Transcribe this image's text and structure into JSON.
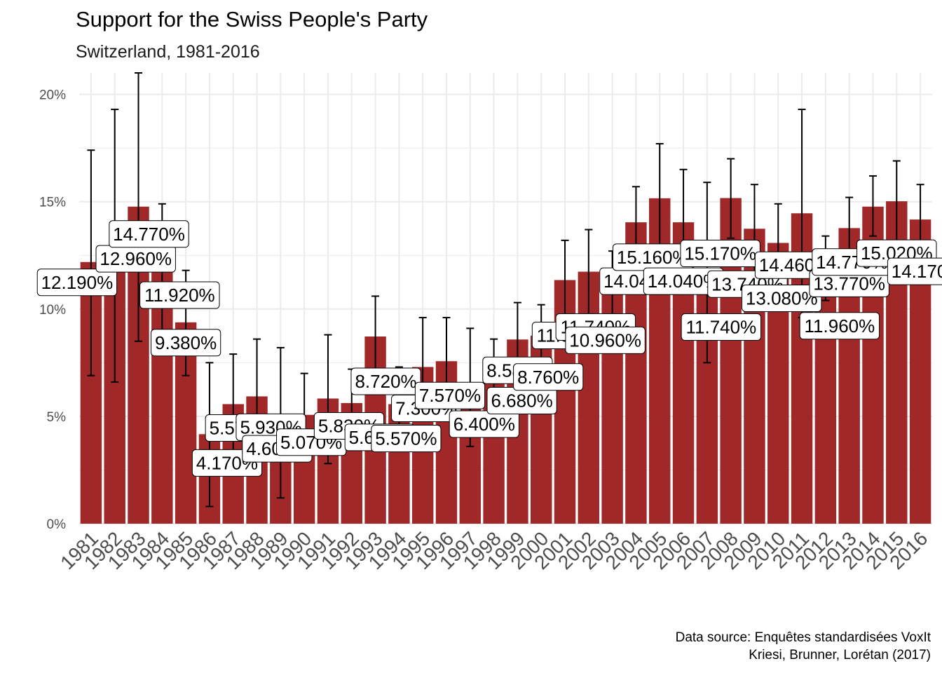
{
  "header": {
    "title": "Support for the Swiss People's Party",
    "subtitle": "Switzerland, 1981-2016"
  },
  "caption": {
    "line1": "Data source: Enquêtes standardisées VoxIt",
    "line2": "Kriesi, Brunner, Lorétan (2017)"
  },
  "colors": {
    "bar": "#9b1c1c",
    "grid": "#ebebeb",
    "errorbar": "#000000",
    "label_bg": "#ffffff"
  },
  "chart_data": {
    "type": "bar",
    "title": "Support for the Swiss People's Party",
    "subtitle": "Switzerland, 1981-2016",
    "xlabel": "",
    "ylabel": "",
    "ylim": [
      0,
      21
    ],
    "y_ticks": [
      0,
      5,
      10,
      15,
      20
    ],
    "y_tick_labels": [
      "0%",
      "5%",
      "10%",
      "15%",
      "20%"
    ],
    "grid": true,
    "categories": [
      "1981",
      "1982",
      "1983",
      "1984",
      "1985",
      "1986",
      "1987",
      "1988",
      "1989",
      "1990",
      "1991",
      "1992",
      "1993",
      "1994",
      "1995",
      "1996",
      "1997",
      "1998",
      "1999",
      "2000",
      "2001",
      "2002",
      "2003",
      "2004",
      "2005",
      "2006",
      "2007",
      "2008",
      "2009",
      "2010",
      "2011",
      "2012",
      "2013",
      "2014",
      "2015",
      "2016"
    ],
    "values": [
      12.19,
      12.96,
      14.77,
      11.92,
      9.38,
      4.17,
      5.57,
      5.93,
      4.6,
      5.07,
      5.83,
      5.62,
      8.72,
      5.57,
      7.3,
      7.57,
      6.4,
      6.68,
      8.58,
      8.76,
      11.35,
      11.74,
      10.96,
      14.04,
      15.16,
      14.04,
      11.74,
      15.17,
      13.74,
      13.08,
      14.46,
      11.96,
      13.77,
      14.77,
      15.02,
      14.17
    ],
    "error_low": [
      6.9,
      6.6,
      8.5,
      8.4,
      6.9,
      0.8,
      3.2,
      3.2,
      1.2,
      3.1,
      2.8,
      4.0,
      6.8,
      3.8,
      5.0,
      5.5,
      3.6,
      4.8,
      6.8,
      7.3,
      9.5,
      9.7,
      9.1,
      12.3,
      12.5,
      11.6,
      7.5,
      13.3,
      11.6,
      11.2,
      9.6,
      10.4,
      12.2,
      13.4,
      13.0,
      12.5
    ],
    "error_high": [
      17.4,
      19.3,
      21.0,
      14.9,
      11.8,
      7.5,
      7.9,
      8.6,
      8.2,
      7.0,
      8.8,
      7.2,
      10.6,
      7.3,
      9.6,
      9.6,
      9.1,
      8.6,
      10.3,
      10.2,
      13.2,
      13.7,
      12.7,
      15.7,
      17.7,
      16.5,
      15.9,
      17.0,
      15.8,
      14.9,
      19.3,
      13.4,
      15.2,
      16.2,
      16.9,
      15.8
    ],
    "data_labels": [
      "12.190%",
      "12.960%",
      "14.770%",
      "11.920%",
      "9.380%",
      "4.170%",
      "5.570%",
      "5.930%",
      "4.600%",
      "5.070%",
      "5.830%",
      "5.620%",
      "8.720%",
      "5.570%",
      "7.300%",
      "7.570%",
      "6.400%",
      "6.680%",
      "8.580%",
      "8.760%",
      "11.350%",
      "11.740%",
      "10.960%",
      "14.040%",
      "15.160%",
      "14.040%",
      "11.740%",
      "15.170%",
      "13.740%",
      "13.080%",
      "14.460%",
      "11.960%",
      "13.770%",
      "14.770%",
      "15.020%",
      "14.170%"
    ]
  }
}
